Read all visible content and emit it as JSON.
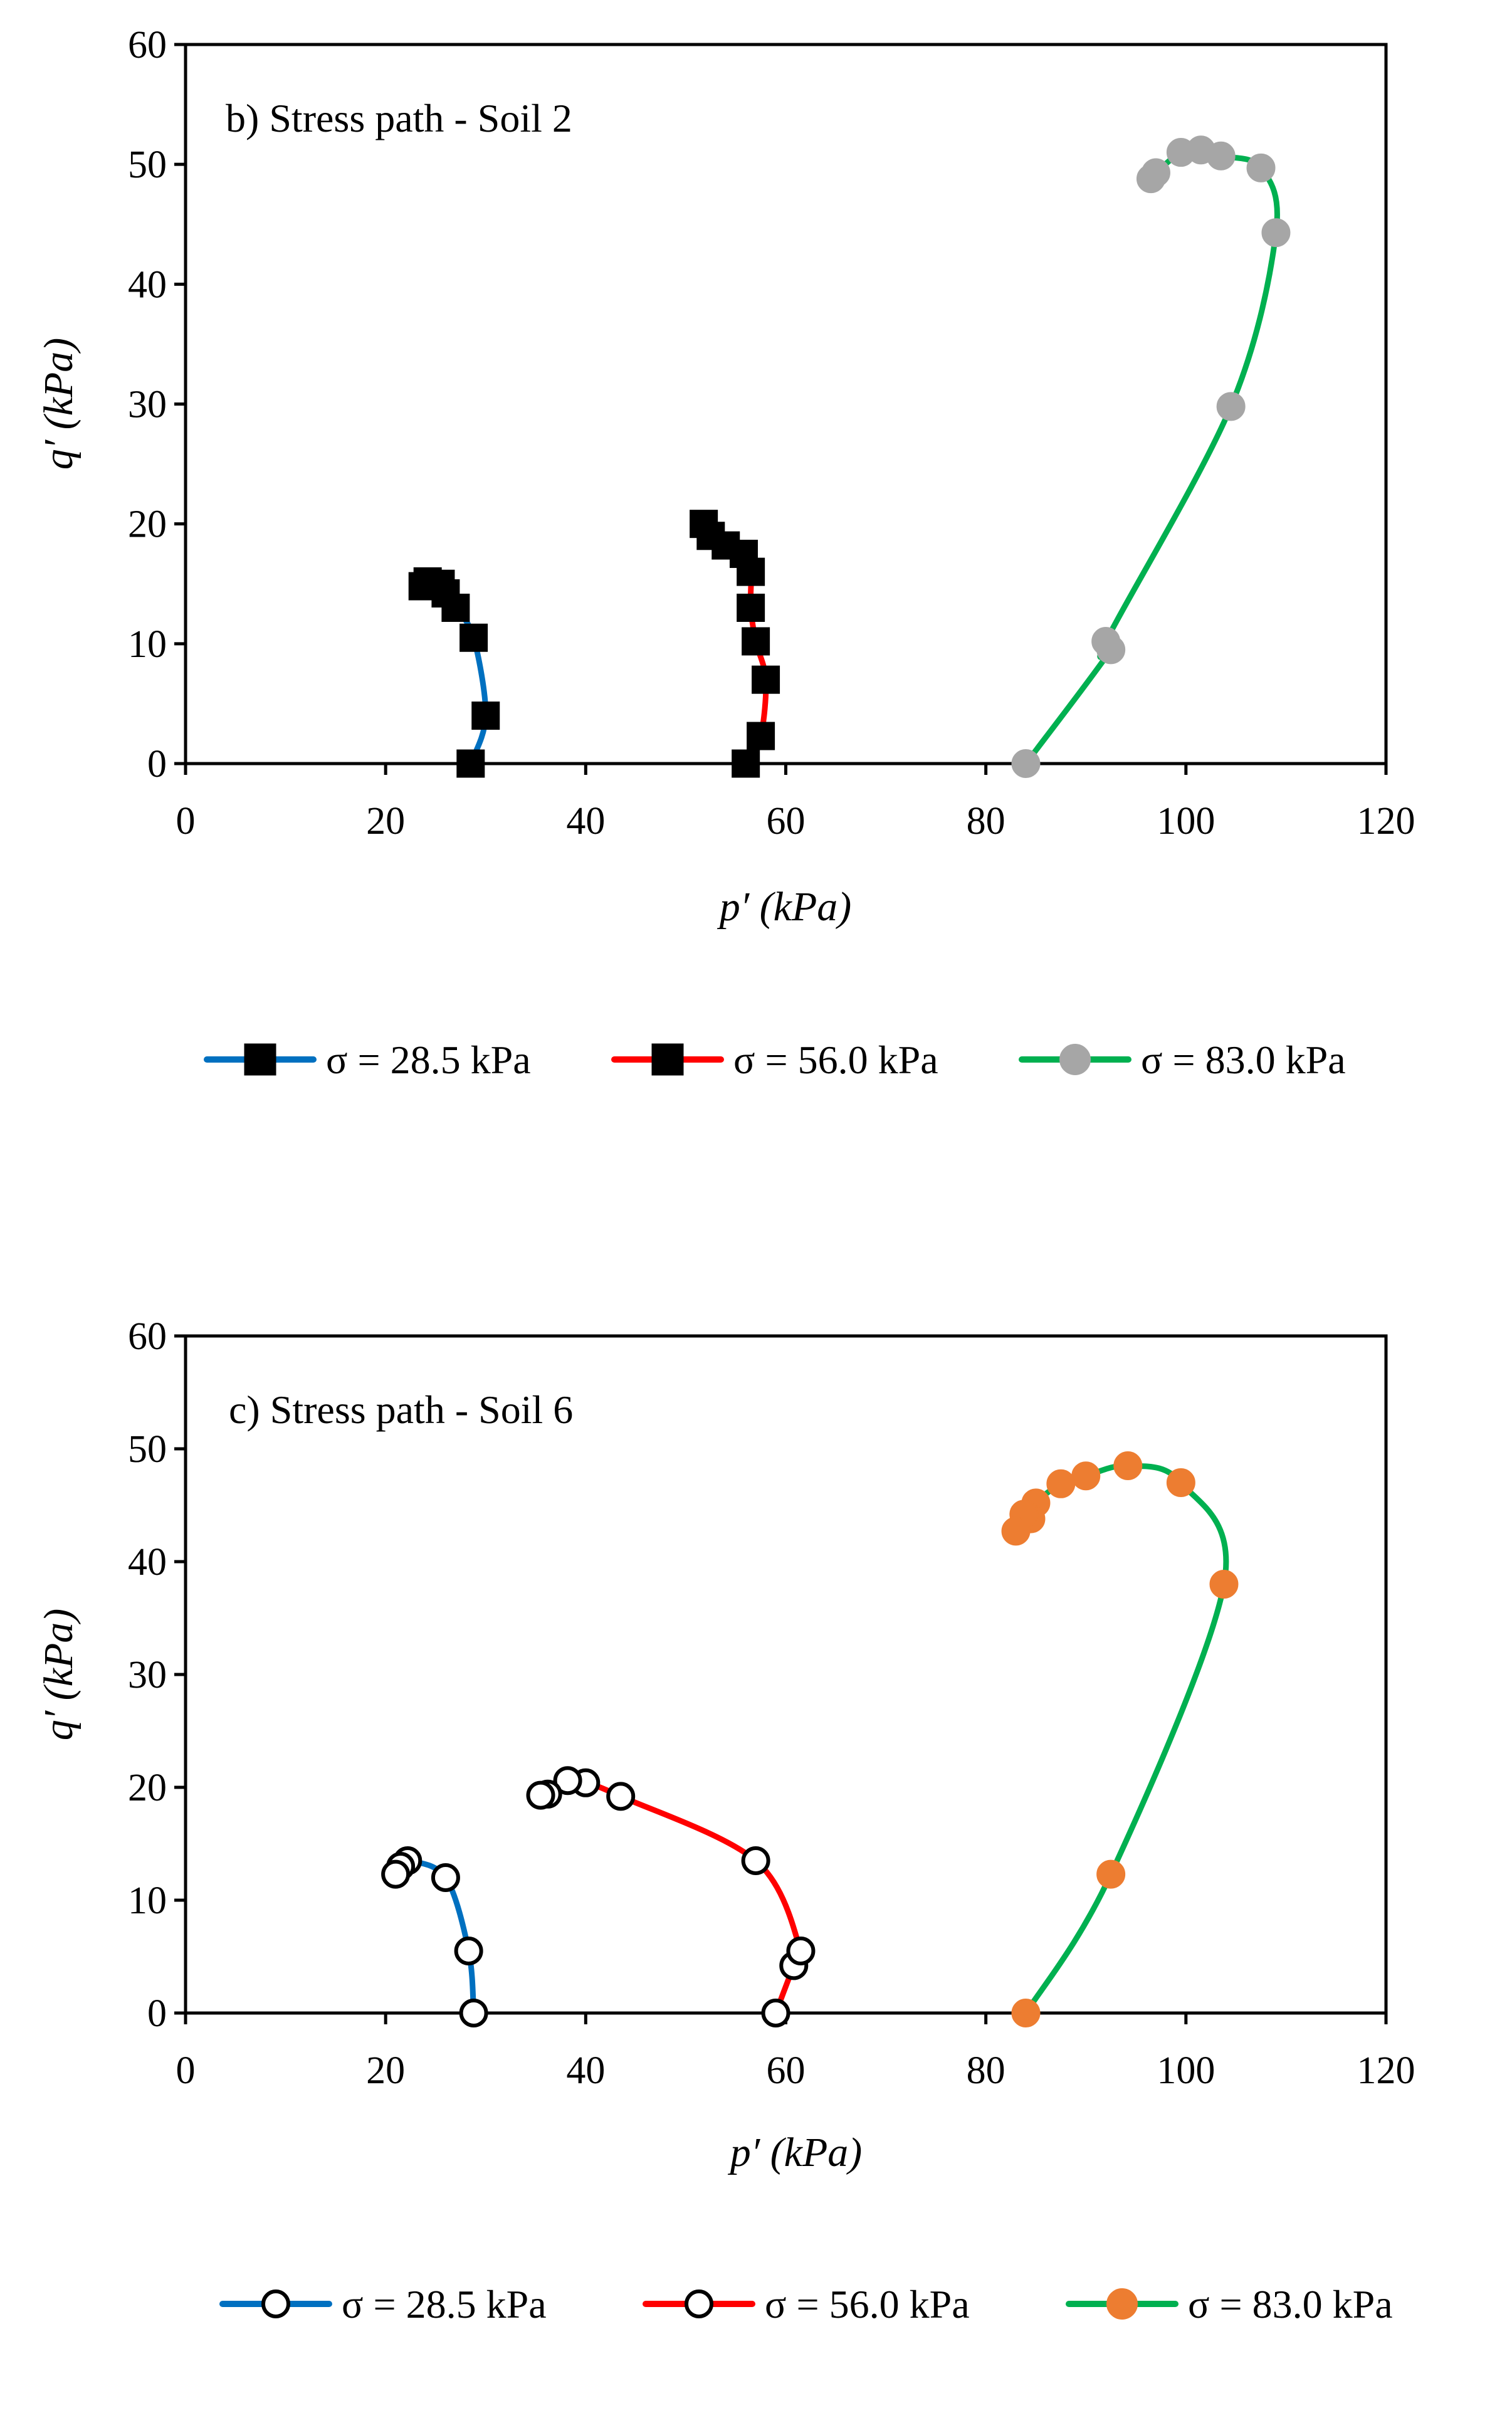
{
  "chart_data": [
    {
      "type": "line",
      "title": "b) Stress path - Soil 2",
      "xlabel": "p′ (kPa)",
      "ylabel": "q′ (kPa)",
      "xlim": [
        0,
        120
      ],
      "ylim": [
        0,
        60
      ],
      "xticks": [
        "0",
        "20",
        "40",
        "60",
        "80",
        "100",
        "120"
      ],
      "yticks": [
        "0",
        "10",
        "20",
        "30",
        "40",
        "50",
        "60"
      ],
      "grid": false,
      "legend_position": "bottom",
      "series": [
        {
          "name": "σ = 28.5 kPa",
          "line_color": "#0070C0",
          "marker": "square",
          "marker_fill": "#000000",
          "marker_stroke": "#000000",
          "points": [
            [
              28.5,
              0
            ],
            [
              30,
              4
            ],
            [
              28.8,
              10.5
            ],
            [
              27,
              13
            ],
            [
              26,
              14.2
            ],
            [
              25.5,
              15
            ],
            [
              24.2,
              15.2
            ],
            [
              23.7,
              14.8
            ]
          ]
        },
        {
          "name": "σ = 56.0 kPa",
          "line_color": "#FF0000",
          "marker": "square",
          "marker_fill": "#000000",
          "marker_stroke": "#000000",
          "points": [
            [
              56,
              0
            ],
            [
              57.5,
              2.3
            ],
            [
              58,
              7
            ],
            [
              57,
              10.2
            ],
            [
              56.5,
              13
            ],
            [
              56.5,
              16
            ],
            [
              55.8,
              17.5
            ],
            [
              54,
              18.2
            ],
            [
              52.5,
              19
            ],
            [
              51.8,
              20
            ]
          ]
        },
        {
          "name": "σ = 83.0 kPa",
          "line_color": "#00B050",
          "marker": "circle",
          "marker_fill": "#A6A6A6",
          "marker_stroke": "#A6A6A6",
          "points": [
            [
              84,
              0
            ],
            [
              92.5,
              9.5
            ],
            [
              92,
              10.2
            ],
            [
              104.5,
              29.8
            ],
            [
              109,
              44.3
            ],
            [
              107.5,
              49.7
            ],
            [
              103.5,
              50.7
            ],
            [
              101.5,
              51.2
            ],
            [
              99.5,
              51
            ],
            [
              97,
              49.3
            ],
            [
              96.5,
              48.8
            ]
          ]
        }
      ]
    },
    {
      "type": "line",
      "title": "c) Stress path - Soil 6",
      "xlabel": "p′ (kPa)",
      "ylabel": "q′ (kPa)",
      "xlim": [
        0,
        120
      ],
      "ylim": [
        0,
        60
      ],
      "xticks": [
        "0",
        "20",
        "40",
        "60",
        "80",
        "100",
        "120"
      ],
      "yticks": [
        "0",
        "10",
        "20",
        "30",
        "40",
        "50",
        "60"
      ],
      "grid": false,
      "legend_position": "bottom",
      "series": [
        {
          "name": "σ = 28.5 kPa",
          "line_color": "#0070C0",
          "marker": "open-circle",
          "marker_fill": "#ffffff",
          "marker_stroke": "#000000",
          "points": [
            [
              28.8,
              0
            ],
            [
              28.3,
              5.5
            ],
            [
              26,
              12
            ],
            [
              22.2,
              13.5
            ],
            [
              21.5,
              13
            ],
            [
              21,
              12.3
            ]
          ]
        },
        {
          "name": "σ = 56.0 kPa",
          "line_color": "#FF0000",
          "marker": "open-circle",
          "marker_fill": "#ffffff",
          "marker_stroke": "#000000",
          "points": [
            [
              59,
              0
            ],
            [
              60.8,
              4.2
            ],
            [
              61.5,
              5.5
            ],
            [
              57,
              13.5
            ],
            [
              43.5,
              19.2
            ],
            [
              40,
              20.4
            ],
            [
              38.2,
              20.6
            ],
            [
              36.2,
              19.4
            ],
            [
              35.5,
              19.3
            ]
          ]
        },
        {
          "name": "σ = 83.0 kPa",
          "line_color": "#00B050",
          "marker": "circle",
          "marker_fill": "#ED7D31",
          "marker_stroke": "#ED7D31",
          "points": [
            [
              84,
              0
            ],
            [
              92.5,
              12.3
            ],
            [
              103.8,
              38
            ],
            [
              99.5,
              47
            ],
            [
              94.2,
              48.5
            ],
            [
              90,
              47.6
            ],
            [
              87.5,
              46.9
            ],
            [
              85,
              45.2
            ],
            [
              84.5,
              43.8
            ],
            [
              83.8,
              44.2
            ],
            [
              83,
              42.7
            ]
          ]
        }
      ]
    }
  ]
}
